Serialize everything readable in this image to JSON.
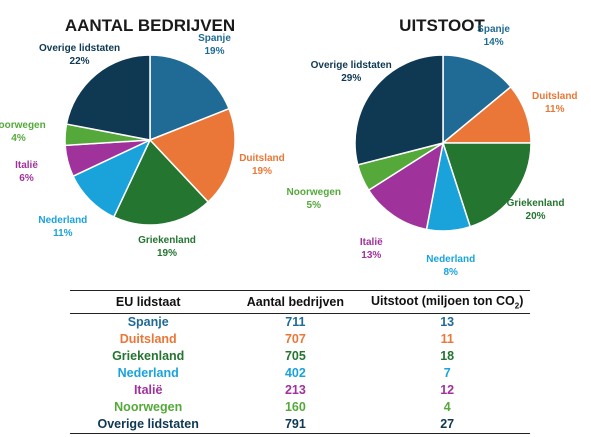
{
  "colors": {
    "Spanje": "#1f6b95",
    "Duitsland": "#ea7737",
    "Griekenland": "#237530",
    "Nederland": "#1aa3db",
    "Italië": "#a0329c",
    "Noorwegen": "#55a93b",
    "Overige lidstaten": "#0f3852"
  },
  "chart_data": [
    {
      "type": "pie",
      "title": "AANTAL BEDRIJVEN",
      "categories": [
        "Spanje",
        "Duitsland",
        "Griekenland",
        "Nederland",
        "Italië",
        "Noorwegen",
        "Overige lidstaten"
      ],
      "values": [
        19,
        19,
        19,
        11,
        6,
        4,
        22
      ],
      "labels": [
        "19%",
        "19%",
        "19%",
        "11%",
        "6%",
        "4%",
        "22%"
      ]
    },
    {
      "type": "pie",
      "title": "UITSTOOT",
      "categories": [
        "Spanje",
        "Duitsland",
        "Griekenland",
        "Nederland",
        "Italië",
        "Noorwegen",
        "Overige lidstaten"
      ],
      "values": [
        14,
        11,
        20,
        8,
        13,
        5,
        29
      ],
      "labels": [
        "14%",
        "11%",
        "20%",
        "8%",
        "13%",
        "5%",
        "29%"
      ]
    },
    {
      "type": "table",
      "headers": [
        "EU lidstaat",
        "Aantal bedrijven",
        "Uitstoot (miljoen ton CO",
        "2",
        ")"
      ],
      "rows": [
        {
          "country": "Spanje",
          "bedrijven": "711",
          "uitstoot": "13"
        },
        {
          "country": "Duitsland",
          "bedrijven": "707",
          "uitstoot": "11"
        },
        {
          "country": "Griekenland",
          "bedrijven": "705",
          "uitstoot": "18"
        },
        {
          "country": "Nederland",
          "bedrijven": "402",
          "uitstoot": "7"
        },
        {
          "country": "Italië",
          "bedrijven": "213",
          "uitstoot": "12"
        },
        {
          "country": "Noorwegen",
          "bedrijven": "160",
          "uitstoot": "4"
        },
        {
          "country": "Overige lidstaten",
          "bedrijven": "791",
          "uitstoot": "27"
        }
      ]
    }
  ]
}
